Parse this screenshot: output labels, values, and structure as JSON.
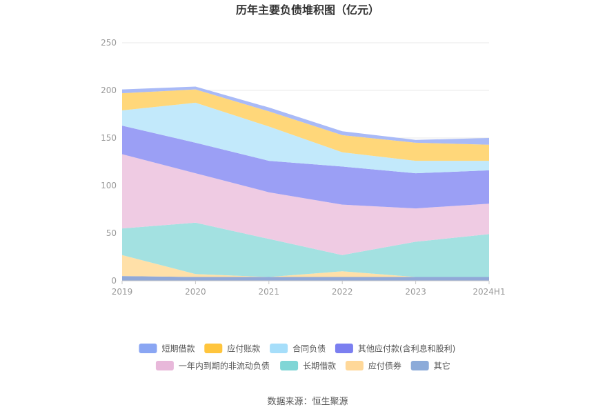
{
  "chart_data": {
    "type": "area",
    "stacked": true,
    "title": "历年主要负债堆积图（亿元）",
    "categories": [
      "2019",
      "2020",
      "2021",
      "2022",
      "2023",
      "2024H1"
    ],
    "ylim": [
      0,
      250
    ],
    "yticks": [
      "0",
      "50",
      "100",
      "150",
      "200",
      "250"
    ],
    "grid": true,
    "legend_position": "bottom",
    "series": [
      {
        "name": "其它",
        "color": "#91a9d8",
        "values": [
          5,
          4,
          4,
          4,
          4,
          4
        ]
      },
      {
        "name": "应付债券",
        "color": "#ffe0a8",
        "values": [
          22,
          3,
          0,
          6,
          0,
          0
        ]
      },
      {
        "name": "长期借款",
        "color": "#a3e1e1",
        "values": [
          28,
          54,
          40,
          17,
          37,
          45
        ]
      },
      {
        "name": "一年内到期的非流动负债",
        "color": "#efcbe3",
        "values": [
          78,
          52,
          49,
          53,
          35,
          32
        ]
      },
      {
        "name": "其他应付款(含利息和股利)",
        "color": "#9b9ff5",
        "values": [
          30,
          32,
          33,
          40,
          37,
          35
        ]
      },
      {
        "name": "合同负债",
        "color": "#c2e9fb",
        "values": [
          16,
          42,
          36,
          15,
          13,
          10
        ]
      },
      {
        "name": "应付账款",
        "color": "#ffd77a",
        "values": [
          18,
          14,
          16,
          18,
          19,
          17
        ]
      },
      {
        "name": "短期借款",
        "color": "#a9baf7",
        "values": [
          4,
          3,
          4,
          4,
          3,
          7
        ]
      }
    ],
    "legend": [
      {
        "name": "短期借款",
        "color": "#8aa6f3"
      },
      {
        "name": "应付账款",
        "color": "#ffc53d"
      },
      {
        "name": "合同负债",
        "color": "#a6defa"
      },
      {
        "name": "其他应付款(含利息和股利)",
        "color": "#7b7ff0"
      },
      {
        "name": "一年内到期的非流动负债",
        "color": "#e8b8da"
      },
      {
        "name": "长期借款",
        "color": "#80d6d6"
      },
      {
        "name": "应付债券",
        "color": "#ffd899"
      },
      {
        "name": "其它",
        "color": "#8cabd9"
      }
    ],
    "source": "数据来源：恒生聚源"
  }
}
